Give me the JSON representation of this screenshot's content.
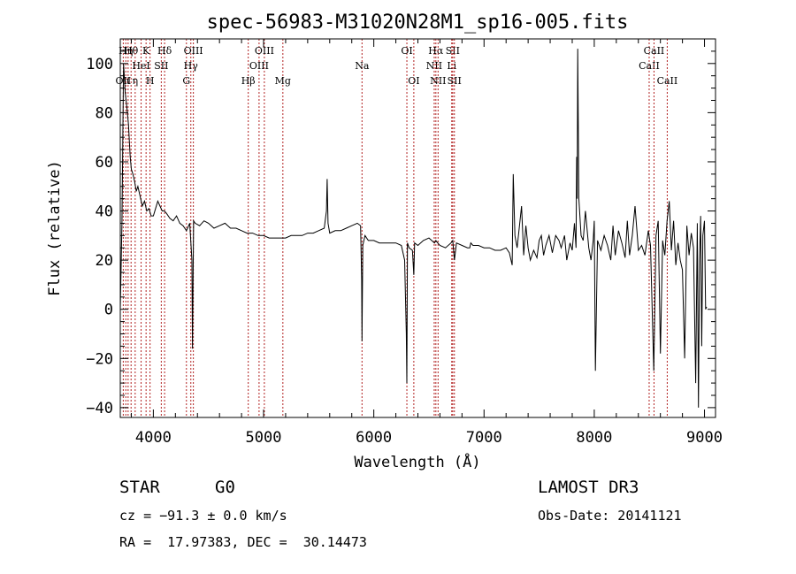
{
  "chart_data": {
    "type": "line",
    "title": "spec-56983-M31020N28M1_sp16-005.fits",
    "xlabel": "Wavelength (Å)",
    "ylabel": "Flux (relative)",
    "xlim": [
      3700,
      9100
    ],
    "ylim": [
      -44,
      110
    ],
    "x_ticks": [
      4000,
      5000,
      6000,
      7000,
      8000,
      9000
    ],
    "x_tick_labels": [
      "4000",
      "5000",
      "6000",
      "7000",
      "8000",
      "9000"
    ],
    "y_ticks": [
      -40,
      -20,
      0,
      20,
      40,
      60,
      80,
      100
    ],
    "y_tick_labels": [
      "−40",
      "−20",
      "0",
      "20",
      "40",
      "60",
      "80",
      "100"
    ],
    "series": [
      {
        "name": "spectrum",
        "x": [
          3700,
          3715,
          3730,
          3745,
          3760,
          3775,
          3790,
          3800,
          3815,
          3830,
          3845,
          3860,
          3880,
          3900,
          3920,
          3940,
          3960,
          3980,
          4000,
          4020,
          4040,
          4060,
          4080,
          4100,
          4120,
          4150,
          4180,
          4210,
          4240,
          4270,
          4300,
          4330,
          4350,
          4355,
          4365,
          4380,
          4420,
          4460,
          4500,
          4550,
          4600,
          4650,
          4700,
          4750,
          4800,
          4850,
          4900,
          4950,
          5000,
          5050,
          5100,
          5150,
          5200,
          5250,
          5300,
          5350,
          5400,
          5450,
          5500,
          5550,
          5570,
          5577,
          5585,
          5600,
          5650,
          5700,
          5750,
          5800,
          5850,
          5880,
          5890,
          5893,
          5900,
          5920,
          5950,
          6000,
          6050,
          6100,
          6150,
          6200,
          6250,
          6280,
          6295,
          6300,
          6305,
          6320,
          6350,
          6363,
          6370,
          6400,
          6450,
          6500,
          6550,
          6563,
          6580,
          6600,
          6650,
          6700,
          6716,
          6731,
          6750,
          6800,
          6850,
          6870,
          6880,
          6900,
          6950,
          7000,
          7050,
          7100,
          7150,
          7200,
          7230,
          7245,
          7255,
          7265,
          7280,
          7300,
          7340,
          7360,
          7380,
          7400,
          7420,
          7450,
          7480,
          7500,
          7520,
          7540,
          7560,
          7590,
          7620,
          7650,
          7680,
          7700,
          7730,
          7750,
          7780,
          7800,
          7820,
          7835,
          7840,
          7845,
          7850,
          7860,
          7880,
          7900,
          7920,
          7950,
          7970,
          7990,
          8000,
          8010,
          8030,
          8060,
          8090,
          8120,
          8150,
          8170,
          8190,
          8220,
          8250,
          8280,
          8300,
          8320,
          8345,
          8370,
          8400,
          8430,
          8460,
          8490,
          8510,
          8540,
          8560,
          8580,
          8600,
          8620,
          8640,
          8660,
          8680,
          8700,
          8720,
          8740,
          8760,
          8780,
          8800,
          8820,
          8840,
          8860,
          8880,
          8900,
          8920,
          8935,
          8945,
          8955,
          8965,
          8975,
          8985,
          9000,
          9010,
          9020
        ],
        "y": [
          0,
          35,
          100,
          88,
          82,
          75,
          62,
          57,
          55,
          52,
          48,
          50,
          46,
          42,
          44,
          40,
          41,
          38,
          38,
          41,
          44,
          42,
          40,
          40,
          39,
          37,
          36,
          38,
          35,
          34,
          32,
          35,
          20,
          -16,
          36,
          35,
          34,
          36,
          35,
          33,
          34,
          35,
          33,
          33,
          32,
          31,
          31,
          30,
          30,
          29,
          29,
          29,
          29,
          30,
          30,
          30,
          31,
          31,
          32,
          33,
          40,
          53,
          35,
          31,
          32,
          32,
          33,
          34,
          35,
          34,
          12,
          -13,
          26,
          30,
          28,
          28,
          27,
          27,
          27,
          27,
          26,
          20,
          -10,
          -30,
          27,
          25,
          24,
          14,
          27,
          26,
          28,
          29,
          27,
          28,
          27,
          26,
          25,
          27,
          28,
          20,
          27,
          26,
          25,
          25,
          27,
          26,
          26,
          25,
          25,
          24,
          24,
          25,
          23,
          20,
          18,
          55,
          30,
          25,
          42,
          22,
          34,
          25,
          20,
          24,
          21,
          28,
          30,
          22,
          26,
          30,
          23,
          30,
          28,
          25,
          30,
          20,
          27,
          24,
          35,
          25,
          62,
          45,
          106,
          45,
          30,
          28,
          40,
          25,
          20,
          28,
          36,
          -25,
          28,
          24,
          30,
          26,
          20,
          34,
          22,
          32,
          27,
          21,
          36,
          22,
          30,
          42,
          24,
          26,
          22,
          32,
          26,
          -25,
          30,
          36,
          -18,
          28,
          22,
          36,
          44,
          24,
          36,
          18,
          27,
          20,
          16,
          -20,
          34,
          22,
          31,
          25,
          -30,
          35,
          -40,
          20,
          38,
          -15,
          30,
          36,
          0,
          1
        ]
      }
    ],
    "line_markers": [
      {
        "wavelength": 3727,
        "label": "OII",
        "row": 3
      },
      {
        "wavelength": 3750,
        "label": "Hη",
        "row": 1
      },
      {
        "wavelength": 3771,
        "label": "ι",
        "row": 3
      },
      {
        "wavelength": 3798,
        "label": "Hθ",
        "row": 1
      },
      {
        "wavelength": 3835,
        "label": "η",
        "row": 3
      },
      {
        "wavelength": 3889,
        "label": "HeI",
        "row": 2
      },
      {
        "wavelength": 3934,
        "label": "K",
        "row": 1
      },
      {
        "wavelength": 3970,
        "label": "H",
        "row": 3
      },
      {
        "wavelength": 4072,
        "label": "SII",
        "row": 2
      },
      {
        "wavelength": 4102,
        "label": "Hδ",
        "row": 1
      },
      {
        "wavelength": 4300,
        "label": "G",
        "row": 3
      },
      {
        "wavelength": 4340,
        "label": "Hγ",
        "row": 2
      },
      {
        "wavelength": 4363,
        "label": "OIII",
        "row": 1
      },
      {
        "wavelength": 4861,
        "label": "Hβ",
        "row": 3
      },
      {
        "wavelength": 4959,
        "label": "OIII",
        "row": 2
      },
      {
        "wavelength": 5007,
        "label": "OIII",
        "row": 1
      },
      {
        "wavelength": 5175,
        "label": "Mg",
        "row": 3
      },
      {
        "wavelength": 5893,
        "label": "Na",
        "row": 2
      },
      {
        "wavelength": 6300,
        "label": "OI",
        "row": 1
      },
      {
        "wavelength": 6363,
        "label": "OI",
        "row": 3
      },
      {
        "wavelength": 6548,
        "label": "NII",
        "row": 2
      },
      {
        "wavelength": 6563,
        "label": "Hα",
        "row": 1
      },
      {
        "wavelength": 6583,
        "label": "NII",
        "row": 3
      },
      {
        "wavelength": 6707,
        "label": "Li",
        "row": 2
      },
      {
        "wavelength": 6716,
        "label": "SII",
        "row": 1
      },
      {
        "wavelength": 6731,
        "label": "SII",
        "row": 3
      },
      {
        "wavelength": 8498,
        "label": "CaII",
        "row": 2
      },
      {
        "wavelength": 8542,
        "label": "CaII",
        "row": 1
      },
      {
        "wavelength": 8662,
        "label": "CaII",
        "row": 3
      }
    ],
    "grid": false,
    "legend": "none"
  },
  "footer": {
    "object_class": "STAR",
    "subclass": "G0",
    "survey": "LAMOST DR3",
    "cz": "cz = −91.3 ± 0.0 km/s",
    "obs_date": "Obs-Date: 20141121",
    "coords": "RA =  17.97383, DEC =  30.14473"
  },
  "colors": {
    "spectrum": "#000000",
    "marker": "#b22222",
    "axis": "#000000",
    "background": "#ffffff"
  }
}
